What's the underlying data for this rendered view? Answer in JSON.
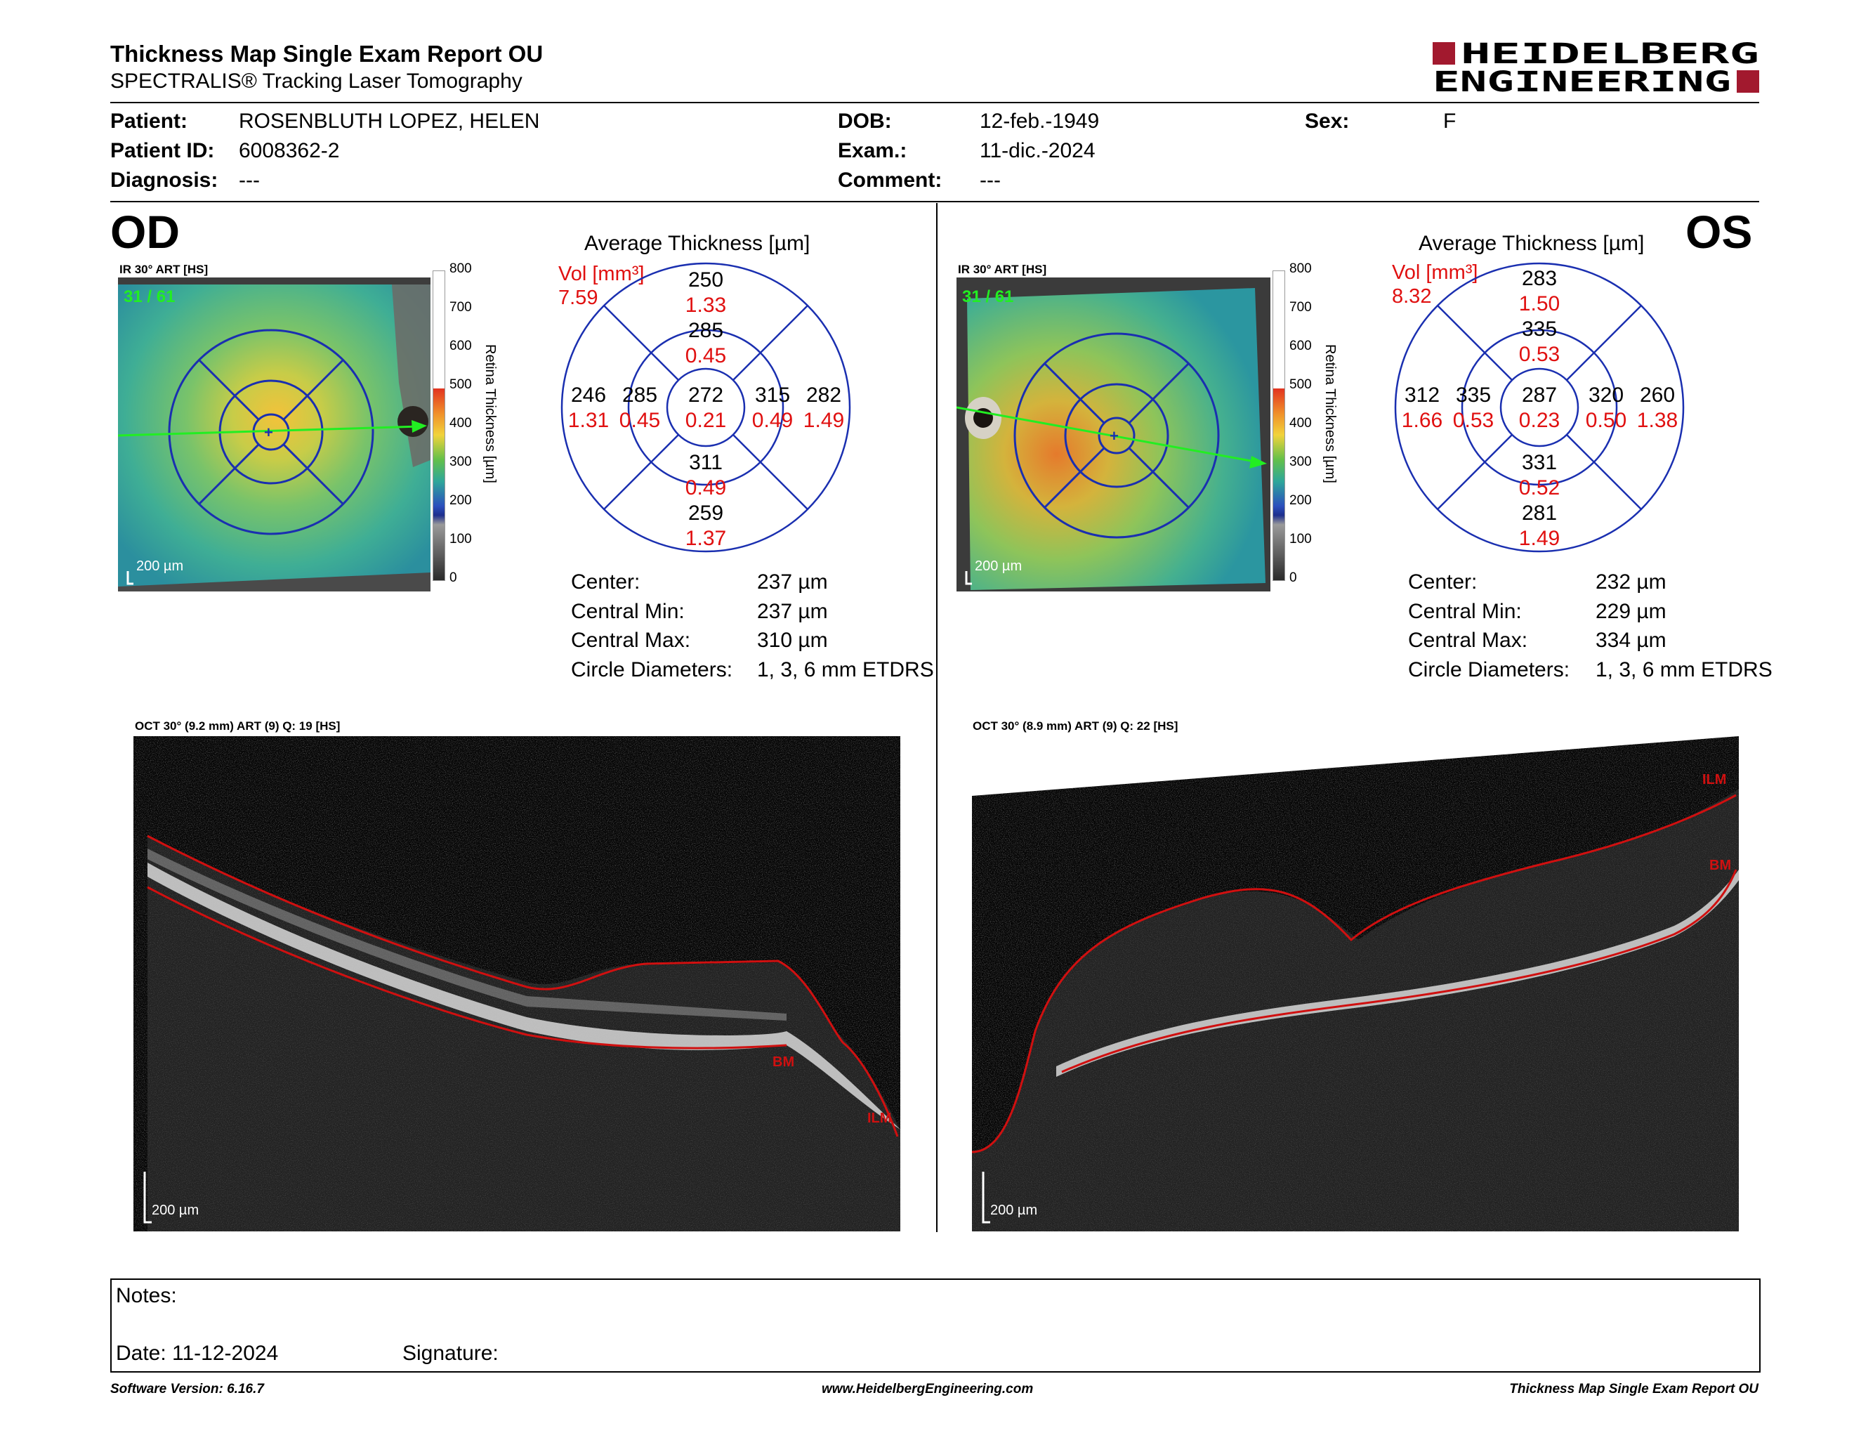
{
  "report": {
    "title": "Thickness Map Single Exam Report OU",
    "subtitle": "SPECTRALIS® Tracking Laser Tomography",
    "logo_line1": "HEIDELBERG",
    "logo_line2": "ENGINEERING",
    "brand_color": "#a2192e"
  },
  "patient": {
    "patient_label": "Patient:",
    "patient_value": "ROSENBLUTH LOPEZ, HELEN",
    "id_label": "Patient ID:",
    "id_value": "6008362-2",
    "diagnosis_label": "Diagnosis:",
    "diagnosis_value": "---",
    "dob_label": "DOB:",
    "dob_value": "12-feb.-1949",
    "exam_label": "Exam.:",
    "exam_value": "11-dic.-2024",
    "comment_label": "Comment:",
    "comment_value": "---",
    "sex_label": "Sex:",
    "sex_value": "F"
  },
  "od": {
    "eye": "OD",
    "ir_caption": "IR 30° ART [HS]",
    "frame": "31 / 61",
    "scale": "200 µm",
    "colorbar_ticks": [
      "800",
      "700",
      "600",
      "500",
      "400",
      "300",
      "200",
      "100",
      "0"
    ],
    "colorbar_label": "Retina Thickness [µm]",
    "avg_title": "Average Thickness [µm]",
    "vol_label": "Vol [mm³]",
    "vol_value": "7.59",
    "sectors": {
      "center": [
        "272",
        "0.21"
      ],
      "inner_sup": [
        "285",
        "0.45"
      ],
      "inner_inf": [
        "311",
        "0.49"
      ],
      "inner_left": [
        "285",
        "0.45"
      ],
      "inner_right": [
        "315",
        "0.49"
      ],
      "outer_sup": [
        "250",
        "1.33"
      ],
      "outer_inf": [
        "259",
        "1.37"
      ],
      "outer_left": [
        "246",
        "1.31"
      ],
      "outer_right": [
        "282",
        "1.49"
      ]
    },
    "stats": [
      {
        "label": "Center:",
        "value": "237 µm"
      },
      {
        "label": "Central Min:",
        "value": "237 µm"
      },
      {
        "label": "Central Max:",
        "value": "310 µm"
      },
      {
        "label": "Circle Diameters:",
        "value": "1, 3, 6 mm ETDRS"
      }
    ],
    "oct_caption": "OCT 30° (9.2 mm) ART (9) Q: 19 [HS]",
    "oct_scale": "200 µm",
    "oct_labels": {
      "bm": "BM",
      "ilm": "ILM"
    }
  },
  "os": {
    "eye": "OS",
    "ir_caption": "IR 30° ART [HS]",
    "frame": "31 / 61",
    "scale": "200 µm",
    "colorbar_ticks": [
      "800",
      "700",
      "600",
      "500",
      "400",
      "300",
      "200",
      "100",
      "0"
    ],
    "colorbar_label": "Retina Thickness [µm]",
    "avg_title": "Average Thickness [µm]",
    "vol_label": "Vol [mm³]",
    "vol_value": "8.32",
    "sectors": {
      "center": [
        "287",
        "0.23"
      ],
      "inner_sup": [
        "335",
        "0.53"
      ],
      "inner_inf": [
        "331",
        "0.52"
      ],
      "inner_left": [
        "335",
        "0.53"
      ],
      "inner_right": [
        "320",
        "0.50"
      ],
      "outer_sup": [
        "283",
        "1.50"
      ],
      "outer_inf": [
        "281",
        "1.49"
      ],
      "outer_left": [
        "312",
        "1.66"
      ],
      "outer_right": [
        "260",
        "1.38"
      ]
    },
    "stats": [
      {
        "label": "Center:",
        "value": "232 µm"
      },
      {
        "label": "Central Min:",
        "value": "229 µm"
      },
      {
        "label": "Central Max:",
        "value": "334 µm"
      },
      {
        "label": "Circle Diameters:",
        "value": "1, 3, 6 mm ETDRS"
      }
    ],
    "oct_caption": "OCT 30° (8.9 mm) ART (9) Q: 22 [HS]",
    "oct_scale": "200 µm",
    "oct_labels": {
      "bm": "BM",
      "ilm": "ILM"
    }
  },
  "notes": {
    "notes_label": "Notes:",
    "date_label": "Date: 11-12-2024",
    "signature_label": "Signature:"
  },
  "footer": {
    "version": "Software Version: 6.16.7",
    "url": "www.HeidelbergEngineering.com",
    "report_name": "Thickness Map Single Exam Report OU"
  }
}
